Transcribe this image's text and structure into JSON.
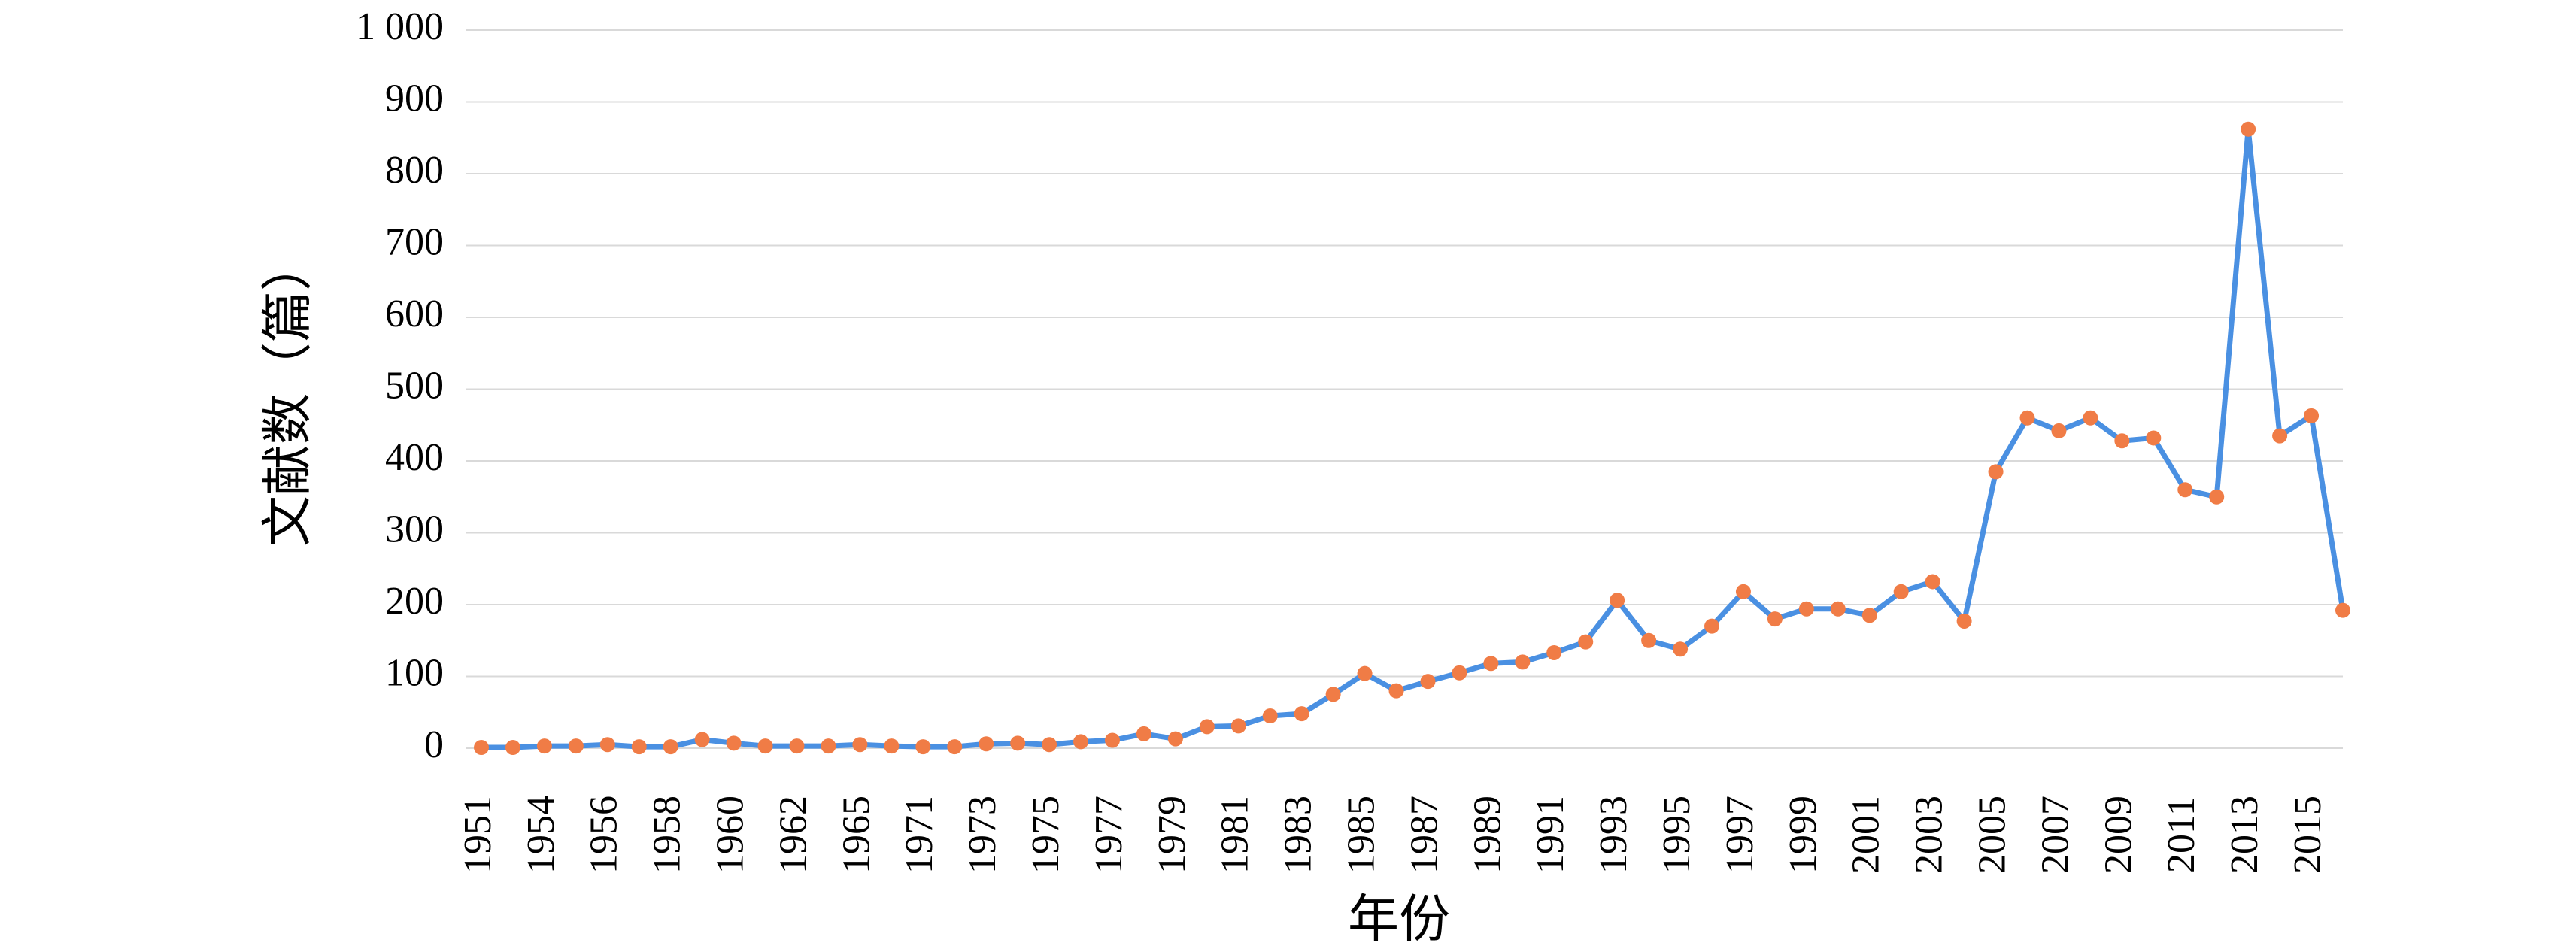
{
  "colors": {
    "line": "#4a90e2",
    "marker": "#f07c46",
    "grid": "#d9d9d9",
    "text": "#000000"
  },
  "chart_data": {
    "type": "line",
    "xlabel": "年份",
    "ylabel": "文献数（篇）",
    "ylim": [
      0,
      1000
    ],
    "yticks": [
      0,
      100,
      200,
      300,
      400,
      500,
      600,
      700,
      800,
      900,
      1000
    ],
    "ytick_labels": [
      "0",
      "100",
      "200",
      "300",
      "400",
      "500",
      "600",
      "700",
      "800",
      "900",
      "1 000"
    ],
    "grid": true,
    "legend": false,
    "x": [
      "1951",
      "1953",
      "1954",
      "1955",
      "1956",
      "1957",
      "1958",
      "1959",
      "1960",
      "1961",
      "1962",
      "1963",
      "1965",
      "1966",
      "1971",
      "1972",
      "1973",
      "1974",
      "1975",
      "1976",
      "1977",
      "1978",
      "1979",
      "1980",
      "1981",
      "1982",
      "1983",
      "1984",
      "1985",
      "1986",
      "1987",
      "1988",
      "1989",
      "1990",
      "1991",
      "1992",
      "1993",
      "1994",
      "1995",
      "1996",
      "1997",
      "1998",
      "1999",
      "2000",
      "2001",
      "2002",
      "2003",
      "2004",
      "2005",
      "2006",
      "2007",
      "2008",
      "2009",
      "2010",
      "2011",
      "2012",
      "2013",
      "2014",
      "2015",
      "2016"
    ],
    "x_tick_labels": [
      "1951",
      "",
      "1954",
      "",
      "1956",
      "",
      "1958",
      "",
      "1960",
      "",
      "1962",
      "",
      "1965",
      "",
      "1971",
      "",
      "1973",
      "",
      "1975",
      "",
      "1977",
      "",
      "1979",
      "",
      "1981",
      "",
      "1983",
      "",
      "1985",
      "",
      "1987",
      "",
      "1989",
      "",
      "1991",
      "",
      "1993",
      "",
      "1995",
      "",
      "1997",
      "",
      "1999",
      "",
      "2001",
      "",
      "2003",
      "",
      "2005",
      "",
      "2007",
      "",
      "2009",
      "",
      "2011",
      "",
      "2013",
      "",
      "2015",
      ""
    ],
    "series": [
      {
        "values": [
          1,
          1,
          3,
          3,
          5,
          2,
          2,
          12,
          7,
          3,
          3,
          3,
          5,
          3,
          2,
          2,
          6,
          7,
          5,
          9,
          11,
          20,
          13,
          30,
          31,
          45,
          48,
          75,
          104,
          80,
          93,
          105,
          118,
          120,
          133,
          148,
          206,
          150,
          138,
          170,
          218,
          180,
          194,
          194,
          185,
          218,
          232,
          177,
          385,
          460,
          442,
          460,
          428,
          432,
          360,
          350,
          862,
          435,
          463,
          192
        ]
      }
    ]
  }
}
